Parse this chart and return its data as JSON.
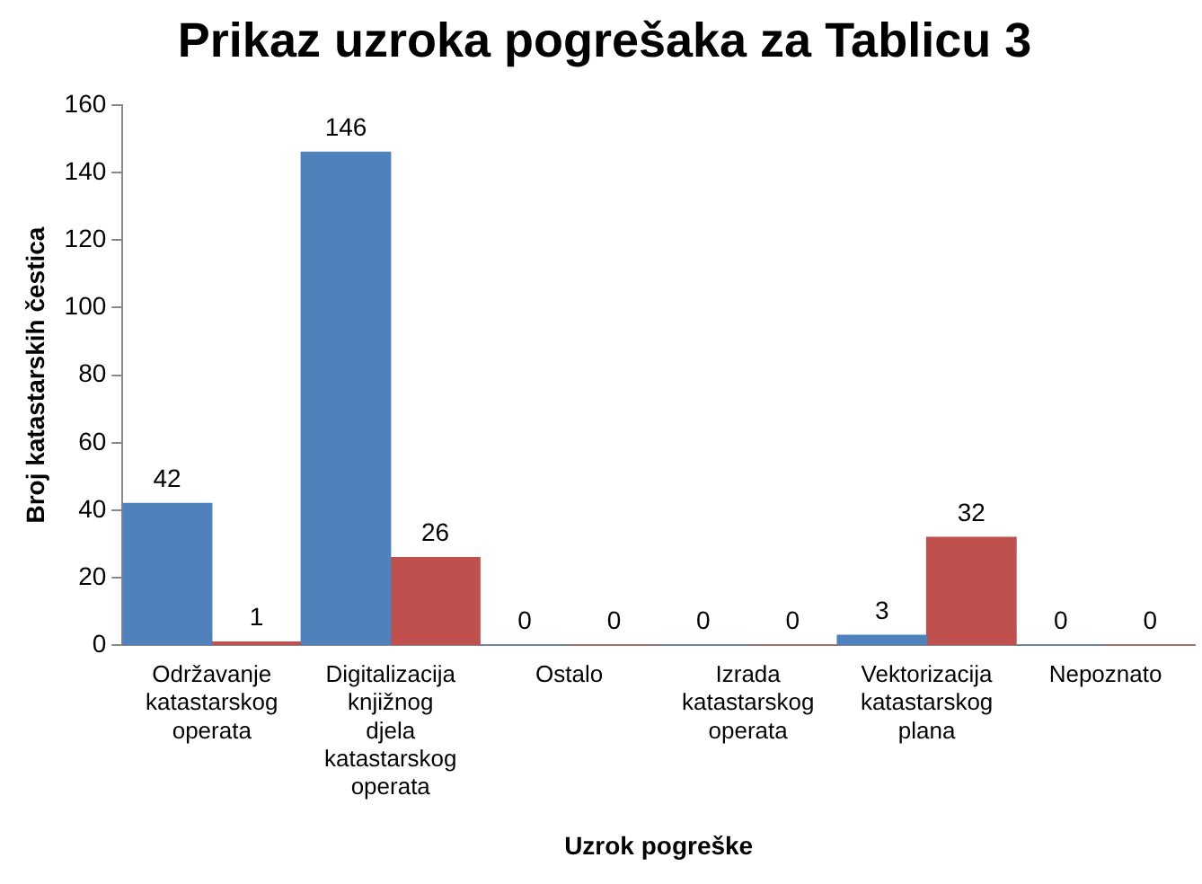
{
  "chart_data": {
    "type": "bar",
    "title": "Prikaz uzroka pogrešaka za Tablicu 3",
    "xlabel": "Uzrok pogreške",
    "ylabel": "Broj katastarskih čestica",
    "categories": [
      "Održavanje katastarskog operata",
      "Digitalizacija knjižnog djela katastarskog operata",
      "Ostalo",
      "Izrada katastarskog operata",
      "Vektorizacija katastarskog plana",
      "Nepoznato"
    ],
    "series": [
      {
        "color": "#4f81bd",
        "values": [
          42,
          146,
          0,
          0,
          3,
          0
        ]
      },
      {
        "color": "#c0504d",
        "values": [
          1,
          26,
          0,
          0,
          32,
          0
        ]
      }
    ],
    "ylim": [
      0,
      160
    ],
    "yticks": [
      0,
      20,
      40,
      60,
      80,
      100,
      120,
      140,
      160
    ],
    "grid": false,
    "legend": false,
    "data_labels": true
  }
}
